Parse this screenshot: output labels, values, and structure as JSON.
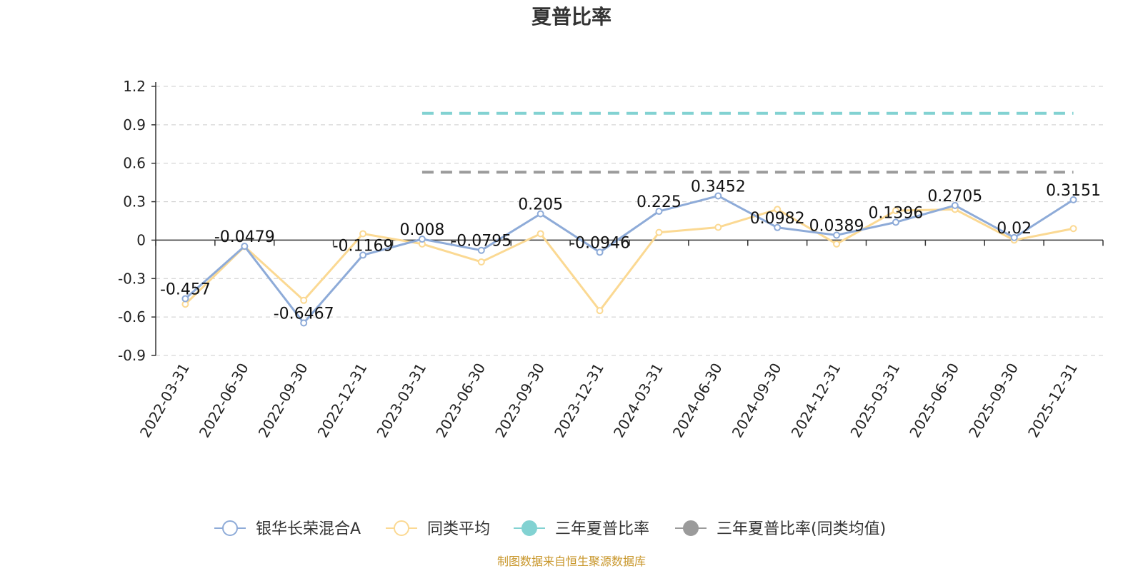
{
  "chart_data": {
    "type": "line",
    "title": "夏普比率",
    "categories": [
      "2022-03-31",
      "2022-06-30",
      "2022-09-30",
      "2022-12-31",
      "2023-03-31",
      "2023-06-30",
      "2023-09-30",
      "2023-12-31",
      "2024-03-31",
      "2024-06-30",
      "2024-09-30",
      "2024-12-31",
      "2025-03-31",
      "2025-06-30",
      "2025-09-30",
      "2025-12-31"
    ],
    "yticks": [
      "1.2",
      "0.9",
      "0.6",
      "0.3",
      "0",
      "-0.3",
      "-0.6",
      "-0.9"
    ],
    "ylim": [
      -0.9,
      1.2
    ],
    "grid": true,
    "legend_position": "bottom",
    "series": [
      {
        "name": "银华长荣混合A",
        "color": "#8eabd8",
        "kind": "line",
        "values": [
          -0.457,
          -0.0479,
          -0.6467,
          -0.1169,
          0.008,
          -0.0795,
          0.205,
          -0.0946,
          0.225,
          0.3452,
          0.0982,
          0.0389,
          0.1396,
          0.2705,
          0.02,
          0.3151
        ],
        "labels": [
          "-0.457",
          "-0.0479",
          "-0.6467",
          "-0.1169",
          "0.008",
          "-0.0795",
          "0.205",
          "-0.0946",
          "0.225",
          "0.3452",
          "0.0982",
          "0.0389",
          "0.1396",
          "0.2705",
          "0.02",
          "0.3151"
        ]
      },
      {
        "name": "同类平均",
        "color": "#fbd993",
        "kind": "line",
        "values": [
          -0.5,
          -0.05,
          -0.47,
          0.05,
          -0.03,
          -0.17,
          0.05,
          -0.55,
          0.06,
          0.1,
          0.24,
          -0.03,
          0.23,
          0.24,
          0.0,
          0.09
        ]
      },
      {
        "name": "三年夏普比率",
        "color": "#82d2d2",
        "kind": "dashed",
        "start_index": 4,
        "value": 0.99
      },
      {
        "name": "三年夏普比率(同类均值)",
        "color": "#9b9b9b",
        "kind": "dashed",
        "start_index": 4,
        "value": 0.53
      }
    ]
  },
  "source": {
    "text": "制图数据来自恒生聚源数据库",
    "color": "#c8962a"
  }
}
